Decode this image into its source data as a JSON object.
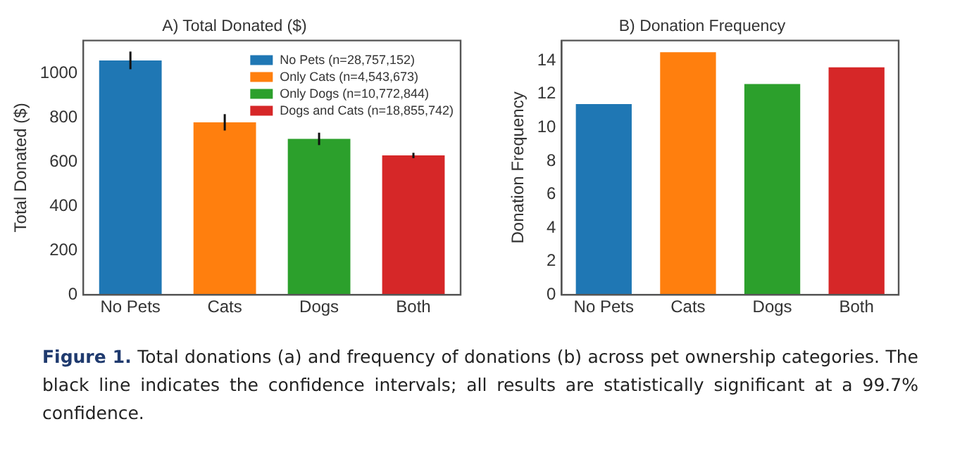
{
  "chart_data": [
    {
      "type": "bar",
      "title": "A) Total Donated ($)",
      "ylabel": "Total Donated ($)",
      "categories": [
        "No Pets",
        "Cats",
        "Dogs",
        "Both"
      ],
      "legend": "top right",
      "series": [
        {
          "name": "No Pets (n=28,757,152)",
          "color": "#1f77b4",
          "values": [
            1060,
            null,
            null,
            null
          ],
          "errors": [
            40,
            null,
            null,
            null
          ]
        },
        {
          "name": "Only Cats (n=4,543,673)",
          "color": "#ff7f0e",
          "values": [
            null,
            780,
            null,
            null
          ],
          "errors": [
            null,
            37,
            null,
            null
          ]
        },
        {
          "name": "Only Dogs (n=10,772,844)",
          "color": "#2ca02c",
          "values": [
            null,
            null,
            705,
            null
          ],
          "errors": [
            null,
            null,
            28,
            null
          ]
        },
        {
          "name": "Dogs and Cats (n=18,855,742)",
          "color": "#d62728",
          "values": [
            null,
            null,
            null,
            630
          ],
          "errors": [
            null,
            null,
            null,
            12
          ]
        }
      ],
      "ylim": [
        0,
        1150
      ],
      "yticks": [
        0,
        200,
        400,
        600,
        800,
        1000
      ],
      "annotations": [
        "Figure 1.",
        "Total donations (a) and frequency of donations (b) across pet ownership categories. The black line indicates the confidence intervals; all results are statistically significant at a 99.7% confidence."
      ]
    },
    {
      "type": "bar",
      "title": "B) Donation Frequency",
      "ylabel": "Donation Frequency",
      "categories": [
        "No Pets",
        "Cats",
        "Dogs",
        "Both"
      ],
      "values": [
        11.4,
        14.5,
        12.6,
        13.6
      ],
      "colors": [
        "#1f77b4",
        "#ff7f0e",
        "#2ca02c",
        "#d62728"
      ],
      "ylim": [
        0,
        15.2
      ],
      "yticks": [
        0,
        2,
        4,
        6,
        8,
        10,
        12,
        14
      ]
    }
  ]
}
